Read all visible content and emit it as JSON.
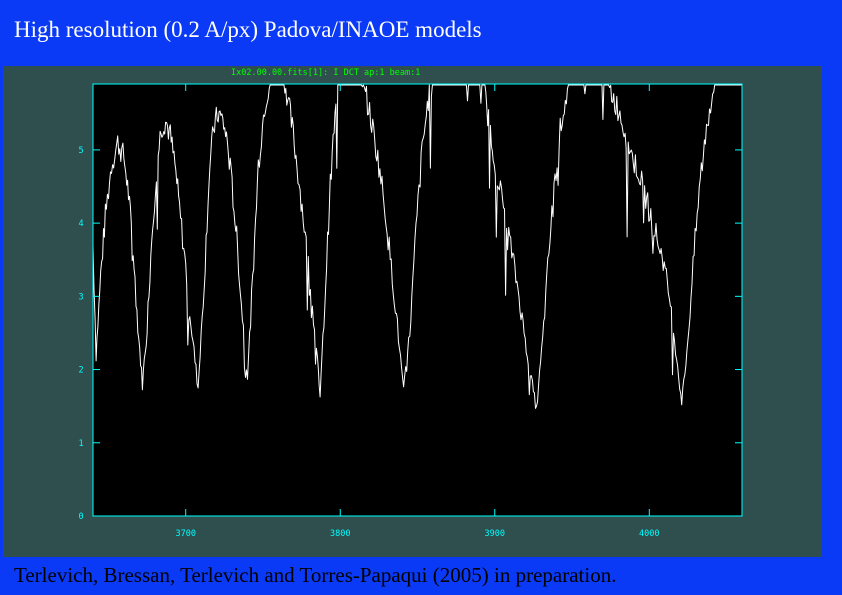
{
  "slide": {
    "title": "High resolution (0.2 A/px) Padova/INAOE models",
    "caption": "Terlevich, Bressan, Terlevich and Torres-Papaqui (2005) in preparation."
  },
  "colors": {
    "background": "#0a3af5",
    "panel": "#2f4f4f",
    "plot_bg": "#000000",
    "axes": "#00ffff",
    "spectrum": "#ffffff",
    "header_text": "#00ff00"
  },
  "chart_data": {
    "type": "line",
    "header": "Ix02.00.00.fits[1]: I DCT ap:1 beam:1",
    "x_ticks": [
      3700,
      3800,
      3900,
      4000
    ],
    "x_tick_labels": [
      "3700",
      "3800",
      "3900",
      "4000"
    ],
    "y_ticks": [
      0,
      1,
      2,
      3,
      4,
      5
    ],
    "y_tick_labels": [
      "0",
      "1",
      "2",
      "3",
      "4",
      "5"
    ],
    "xlim": [
      3640,
      4060
    ],
    "ylim": [
      0,
      5.9
    ],
    "grid": false,
    "series": [
      {
        "x": [
          3640,
          3642,
          3645,
          3648,
          3652,
          3656,
          3660,
          3663,
          3666,
          3669,
          3672,
          3675,
          3678,
          3681,
          3684,
          3687,
          3690,
          3693,
          3696,
          3700,
          3704,
          3708,
          3712,
          3715,
          3718,
          3721,
          3724,
          3727,
          3730,
          3733,
          3736,
          3740,
          3744,
          3747,
          3751,
          3754,
          3757,
          3760,
          3763,
          3766,
          3769,
          3772,
          3776,
          3780,
          3784,
          3787,
          3790,
          3793,
          3796,
          3799,
          3802,
          3805,
          3809,
          3813,
          3817,
          3821,
          3825,
          3829,
          3833,
          3837,
          3841,
          3845,
          3849,
          3853,
          3857,
          3861,
          3865,
          3869,
          3873,
          3877,
          3881,
          3885,
          3889,
          3893,
          3896,
          3899,
          3903,
          3907,
          3911,
          3915,
          3919,
          3923,
          3927,
          3931,
          3935,
          3939,
          3943,
          3947,
          3951,
          3955,
          3959,
          3963,
          3967,
          3970,
          3973,
          3977,
          3981,
          3985,
          3989,
          3993,
          3997,
          4001,
          4005,
          4009,
          4013,
          4017,
          4021,
          4025,
          4029,
          4033,
          4037,
          4041,
          4045,
          4049,
          4053,
          4057,
          4060
        ],
        "y": [
          3.7,
          2.2,
          3.3,
          4.1,
          4.8,
          5.1,
          4.9,
          4.4,
          3.6,
          2.6,
          1.8,
          2.6,
          3.8,
          4.7,
          5.3,
          5.4,
          5.2,
          4.8,
          4.2,
          3.4,
          2.5,
          1.75,
          3.2,
          4.6,
          5.3,
          5.5,
          5.4,
          5.1,
          4.5,
          3.8,
          2.9,
          1.9,
          3.5,
          4.8,
          5.6,
          5.9,
          6.1,
          6.2,
          6.1,
          5.7,
          5.3,
          4.8,
          4.1,
          3.3,
          2.4,
          1.65,
          2.9,
          4.3,
          5.3,
          5.9,
          6.1,
          6.2,
          6.1,
          6.0,
          5.7,
          5.3,
          4.8,
          4.2,
          3.4,
          2.6,
          1.7,
          2.5,
          3.9,
          5.0,
          5.7,
          6.1,
          6.3,
          6.4,
          6.5,
          6.6,
          6.4,
          6.3,
          6.1,
          5.9,
          5.4,
          5.0,
          4.5,
          4.1,
          3.6,
          3.1,
          2.5,
          1.95,
          1.45,
          2.4,
          3.6,
          4.6,
          5.4,
          5.8,
          6.0,
          6.2,
          6.3,
          6.4,
          6.3,
          6.1,
          5.9,
          5.7,
          5.5,
          5.2,
          4.9,
          4.7,
          4.4,
          4.1,
          3.8,
          3.5,
          3.0,
          2.3,
          1.55,
          2.4,
          3.6,
          4.6,
          5.3,
          5.8,
          6.1,
          6.2,
          6.3,
          6.4,
          6.3
        ]
      }
    ]
  }
}
